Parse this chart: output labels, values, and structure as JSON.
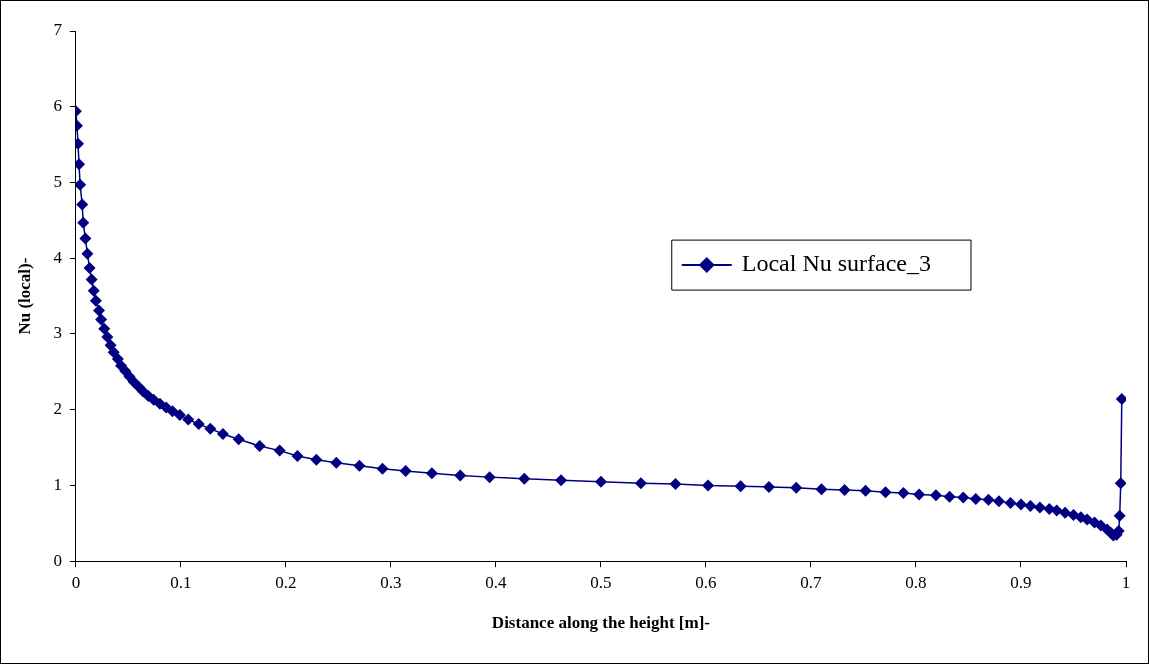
{
  "chart_data": {
    "type": "line",
    "xlabel": "Distance along the height [m]-",
    "ylabel": "Nu (local)-",
    "xlim": [
      0,
      1
    ],
    "ylim": [
      0,
      7
    ],
    "xticks": [
      0,
      0.1,
      0.2,
      0.3,
      0.4,
      0.5,
      0.6,
      0.7,
      0.8,
      0.9,
      1
    ],
    "yticks": [
      0,
      1,
      2,
      3,
      4,
      5,
      6,
      7
    ],
    "grid": false,
    "legend": "right",
    "marker": "diamond",
    "line_style": "solid",
    "series": [
      {
        "name": "Local Nu surface_3",
        "color": "#000080",
        "x": [
          0,
          0.001,
          0.002,
          0.003,
          0.004,
          0.006,
          0.007,
          0.009,
          0.011,
          0.013,
          0.015,
          0.017,
          0.019,
          0.022,
          0.024,
          0.027,
          0.03,
          0.033,
          0.036,
          0.04,
          0.043,
          0.047,
          0.051,
          0.055,
          0.06,
          0.064,
          0.069,
          0.074,
          0.08,
          0.086,
          0.092,
          0.099,
          0.107,
          0.117,
          0.128,
          0.14,
          0.155,
          0.175,
          0.194,
          0.211,
          0.229,
          0.248,
          0.27,
          0.292,
          0.314,
          0.339,
          0.366,
          0.394,
          0.427,
          0.462,
          0.5,
          0.538,
          0.571,
          0.602,
          0.633,
          0.66,
          0.686,
          0.71,
          0.732,
          0.752,
          0.771,
          0.788,
          0.803,
          0.819,
          0.832,
          0.845,
          0.857,
          0.869,
          0.879,
          0.89,
          0.9,
          0.909,
          0.918,
          0.927,
          0.934,
          0.942,
          0.95,
          0.957,
          0.963,
          0.97,
          0.976,
          0.982,
          0.986,
          0.988,
          0.991,
          0.993,
          0.994,
          0.995,
          0.996
        ],
        "values": [
          5.94,
          5.75,
          5.51,
          5.24,
          4.97,
          4.71,
          4.47,
          4.26,
          4.06,
          3.87,
          3.72,
          3.57,
          3.44,
          3.31,
          3.19,
          3.07,
          2.96,
          2.85,
          2.76,
          2.67,
          2.58,
          2.51,
          2.44,
          2.37,
          2.3,
          2.24,
          2.18,
          2.13,
          2.08,
          2.03,
          1.98,
          1.93,
          1.87,
          1.81,
          1.75,
          1.68,
          1.61,
          1.52,
          1.46,
          1.39,
          1.34,
          1.3,
          1.26,
          1.22,
          1.19,
          1.16,
          1.13,
          1.11,
          1.09,
          1.07,
          1.05,
          1.03,
          1.02,
          1.0,
          0.99,
          0.98,
          0.97,
          0.95,
          0.94,
          0.93,
          0.91,
          0.9,
          0.88,
          0.87,
          0.85,
          0.84,
          0.82,
          0.81,
          0.79,
          0.77,
          0.75,
          0.73,
          0.71,
          0.69,
          0.67,
          0.64,
          0.61,
          0.58,
          0.55,
          0.51,
          0.47,
          0.42,
          0.37,
          0.34,
          0.35,
          0.4,
          0.6,
          1.03,
          2.14
        ]
      }
    ]
  }
}
